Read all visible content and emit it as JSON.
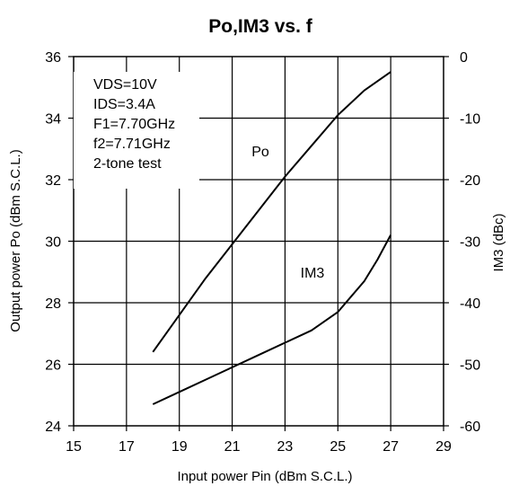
{
  "chart_data": {
    "type": "line",
    "title": "Po,IM3 vs. f",
    "xlabel": "Input power Pin (dBm S.C.L.)",
    "ylabel": "Output power Po (dBm S.C.L.)",
    "y2label": "IM3 (dBc)",
    "xlim": [
      15,
      29
    ],
    "ylim": [
      24,
      36
    ],
    "y2lim": [
      -60,
      0
    ],
    "x_ticks": [
      "15",
      "17",
      "19",
      "21",
      "23",
      "25",
      "27",
      "29"
    ],
    "y_ticks": [
      "24",
      "26",
      "28",
      "30",
      "32",
      "34",
      "36"
    ],
    "y2_ticks": [
      "-60",
      "-50",
      "-40",
      "-30",
      "-20",
      "-10",
      "0"
    ],
    "grid": true,
    "conditions": [
      "VDS=10V",
      "IDS=3.4A",
      "F1=7.70GHz",
      "f2=7.71GHz",
      "2-tone test"
    ],
    "series": [
      {
        "name": "Po",
        "axis": "left",
        "x": [
          18,
          19,
          20,
          21,
          22,
          23,
          24,
          25,
          26,
          27
        ],
        "y": [
          26.4,
          27.6,
          28.8,
          29.9,
          31.0,
          32.1,
          33.1,
          34.1,
          34.9,
          35.5
        ]
      },
      {
        "name": "IM3",
        "axis": "right",
        "x": [
          18,
          19,
          20,
          21,
          22,
          23,
          24,
          25,
          26,
          26.5,
          27
        ],
        "y": [
          -56.5,
          -54.5,
          -52.5,
          -50.5,
          -48.5,
          -46.5,
          -44.5,
          -41.5,
          -36.5,
          -33,
          -29
        ]
      }
    ]
  }
}
